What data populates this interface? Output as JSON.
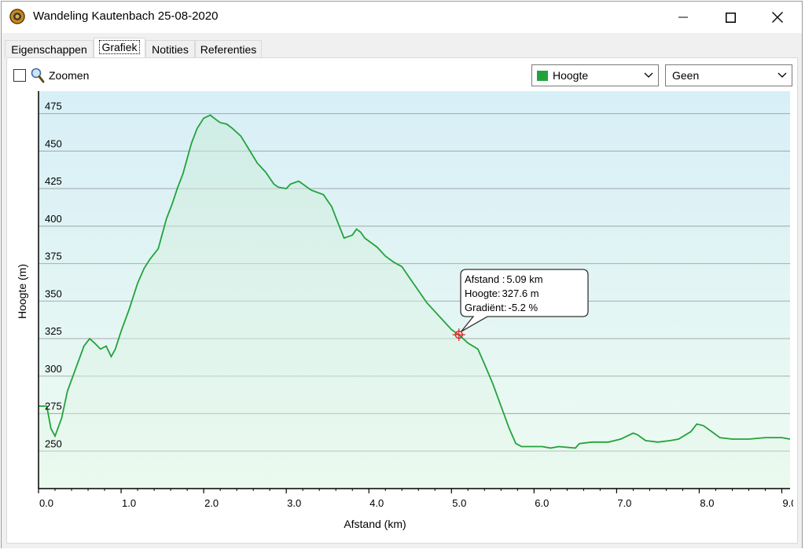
{
  "window": {
    "title": "Wandeling Kautenbach 25-08-2020",
    "buttons": [
      "minimize",
      "maximize",
      "close"
    ]
  },
  "tabs": [
    {
      "label": "Eigenschappen",
      "active": false
    },
    {
      "label": "Grafiek",
      "active": true
    },
    {
      "label": "Notities",
      "active": false
    },
    {
      "label": "Referenties",
      "active": false
    }
  ],
  "toolbar": {
    "zoom_label": "Zoomen",
    "zoom_checked": false,
    "series_select": {
      "value": "Hoogte",
      "swatch_color": "#22a33a"
    },
    "second_select": {
      "value": "Geen"
    }
  },
  "chart_data": {
    "type": "area",
    "xlabel": "Afstand  (km)",
    "ylabel": "Hoogte (m)",
    "xlim": [
      0,
      9.1
    ],
    "ylim": [
      225,
      490
    ],
    "x_ticks": [
      "0.0",
      "1.0",
      "2.0",
      "3.0",
      "4.0",
      "5.0",
      "6.0",
      "7.0",
      "8.0",
      "9.0"
    ],
    "y_ticks": [
      "250",
      "275",
      "300",
      "325",
      "350",
      "375",
      "400",
      "425",
      "450",
      "475"
    ],
    "grid": true,
    "line_color": "#22a33a",
    "series": [
      {
        "x": [
          0.0,
          0.1,
          0.15,
          0.2,
          0.28,
          0.35,
          0.45,
          0.55,
          0.62,
          0.68,
          0.75,
          0.82,
          0.88,
          0.93,
          1.0,
          1.1,
          1.2,
          1.28,
          1.35,
          1.45,
          1.55,
          1.62,
          1.68,
          1.75,
          1.85,
          1.92,
          2.0,
          2.08,
          2.15,
          2.2,
          2.28,
          2.35,
          2.45,
          2.55,
          2.65,
          2.75,
          2.85,
          2.9,
          3.0,
          3.05,
          3.15,
          3.2,
          3.3,
          3.45,
          3.55,
          3.62,
          3.7,
          3.8,
          3.85,
          3.9,
          3.95,
          4.1,
          4.2,
          4.3,
          4.4,
          4.5,
          4.6,
          4.7,
          4.8,
          4.9,
          5.0,
          5.09,
          5.2,
          5.32,
          5.4,
          5.5,
          5.6,
          5.7,
          5.78,
          5.85,
          5.95,
          6.1,
          6.2,
          6.3,
          6.5,
          6.55,
          6.7,
          6.9,
          7.05,
          7.2,
          7.25,
          7.35,
          7.5,
          7.65,
          7.75,
          7.9,
          7.97,
          8.05,
          8.15,
          8.25,
          8.4,
          8.6,
          8.8,
          9.0,
          9.1
        ],
        "y": [
          280,
          280,
          265,
          260,
          272,
          290,
          305,
          320,
          325,
          322,
          318,
          320,
          313,
          318,
          330,
          345,
          362,
          372,
          378,
          385,
          405,
          415,
          425,
          435,
          455,
          465,
          472,
          474,
          471,
          469,
          468,
          465,
          460,
          451,
          442,
          436,
          428,
          426,
          425,
          428,
          430,
          428,
          424,
          421,
          413,
          403,
          392,
          394,
          398,
          396,
          392,
          386,
          380,
          376,
          373,
          365,
          357,
          349,
          343,
          337,
          331,
          327.6,
          322,
          318,
          308,
          295,
          280,
          265,
          255,
          253,
          253,
          253,
          252,
          253,
          252,
          255,
          256,
          256,
          258,
          262,
          261,
          257,
          256,
          257,
          258,
          263,
          268,
          267,
          263,
          259,
          258,
          258,
          259,
          259,
          258
        ]
      }
    ],
    "tooltip": {
      "lines": [
        {
          "label": "Afstand  : ",
          "value": "5.09 km"
        },
        {
          "label": "Hoogte: ",
          "value": "327.6 m"
        },
        {
          "label": "Gradiënt: ",
          "value": "-5.2 %"
        }
      ],
      "x": 5.09,
      "y": 327.6
    }
  }
}
